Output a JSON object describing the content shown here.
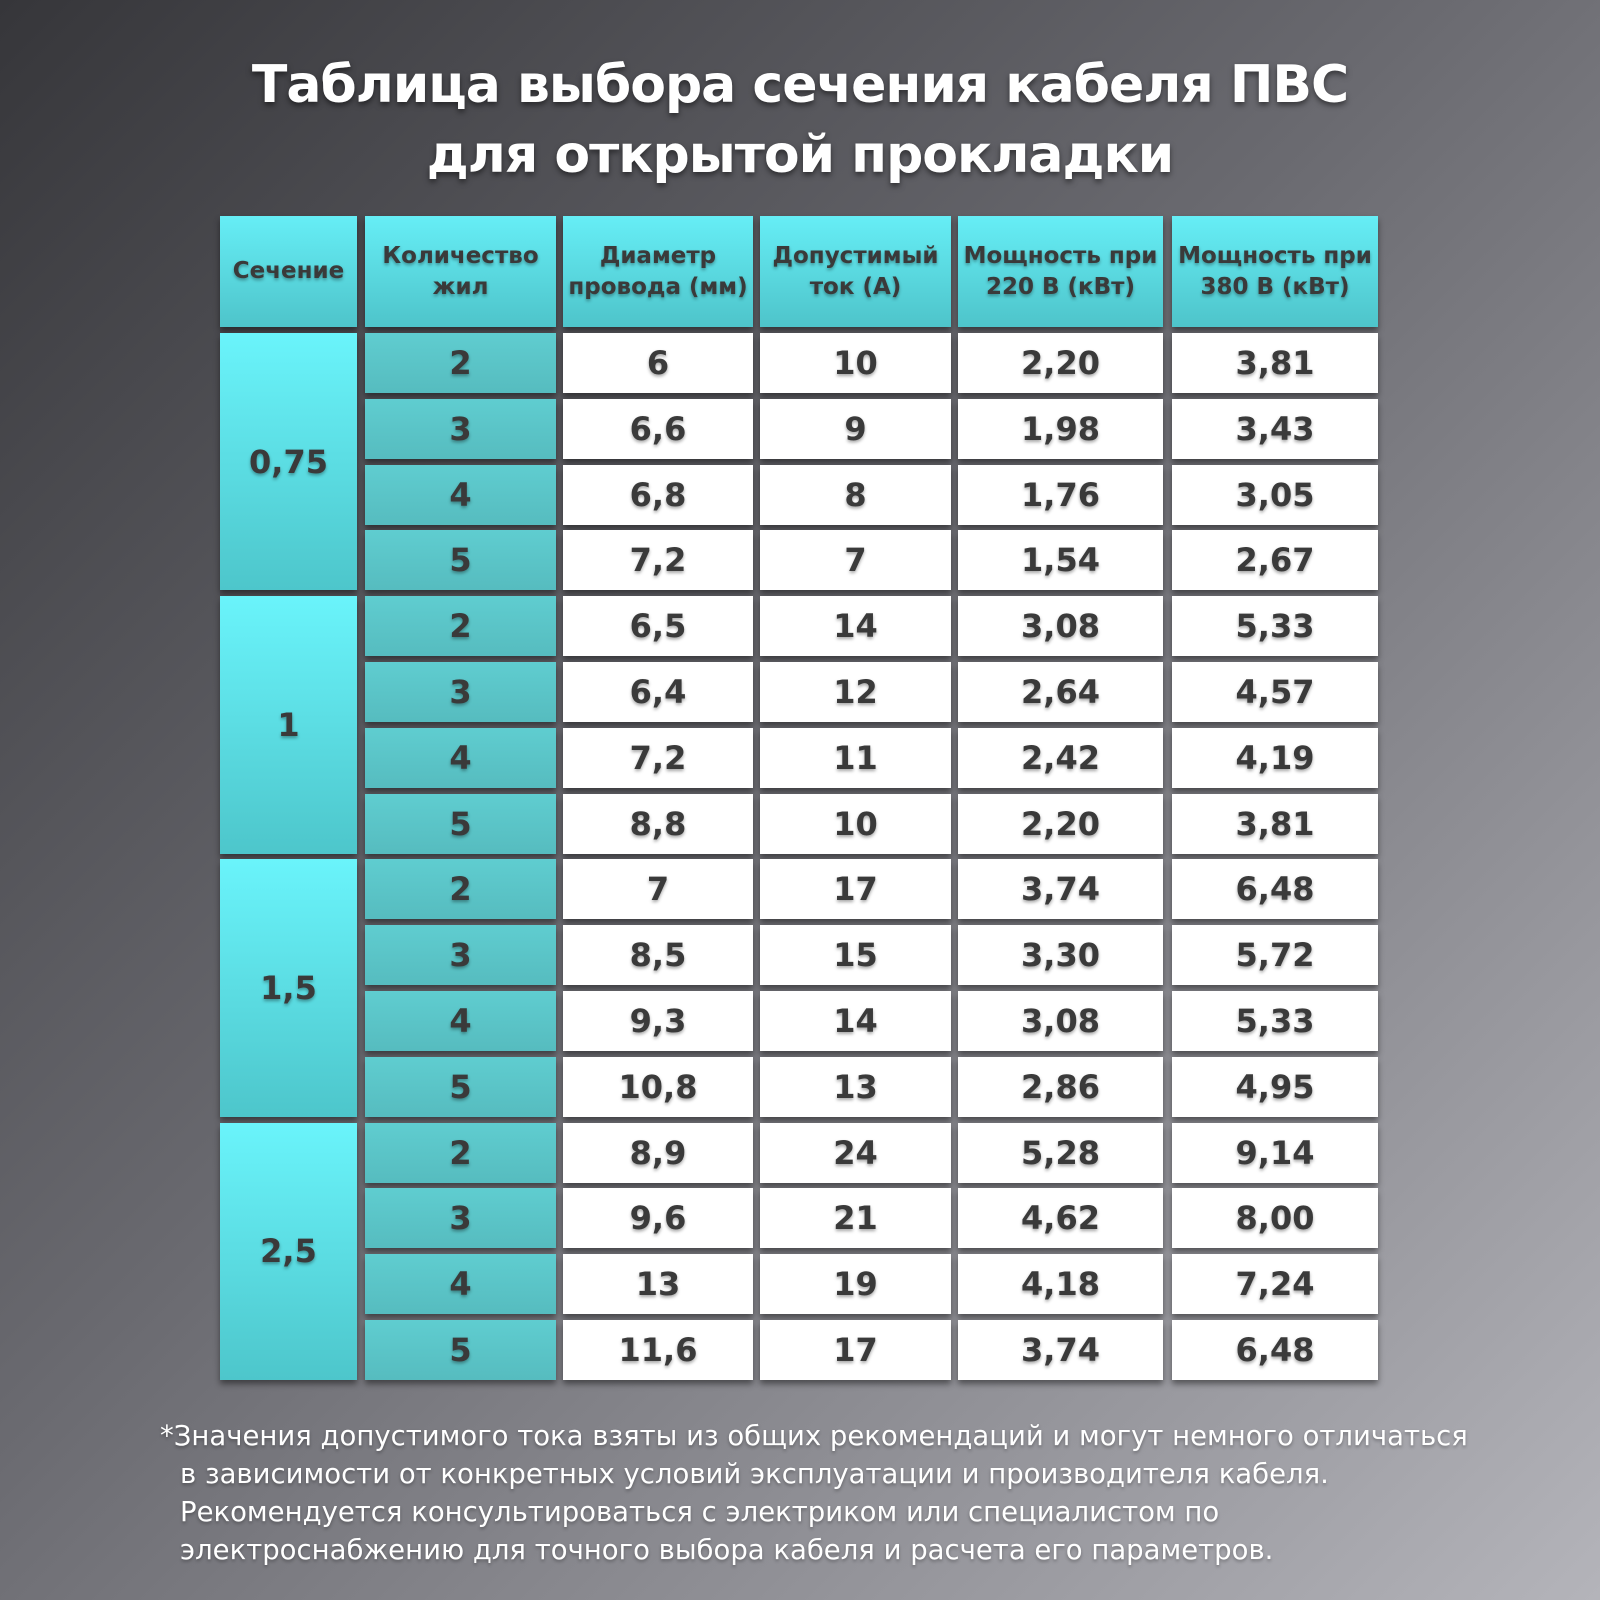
{
  "title_lines": [
    "Таблица выбора сечения кабеля ПВС",
    "для открытой прокладки"
  ],
  "table": {
    "header": [
      "Сечение",
      "Количество жил",
      "Диаметр провода (мм)",
      "Допустимый ток (А)",
      "Мощность при 220 В (кВт)",
      "Мощность при 380 В (кВт)"
    ],
    "groups": [
      {
        "section": "0,75",
        "rows": [
          [
            "2",
            "6",
            "10",
            "2,20",
            "3,81"
          ],
          [
            "3",
            "6,6",
            "9",
            "1,98",
            "3,43"
          ],
          [
            "4",
            "6,8",
            "8",
            "1,76",
            "3,05"
          ],
          [
            "5",
            "7,2",
            "7",
            "1,54",
            "2,67"
          ]
        ]
      },
      {
        "section": "1",
        "rows": [
          [
            "2",
            "6,5",
            "14",
            "3,08",
            "5,33"
          ],
          [
            "3",
            "6,4",
            "12",
            "2,64",
            "4,57"
          ],
          [
            "4",
            "7,2",
            "11",
            "2,42",
            "4,19"
          ],
          [
            "5",
            "8,8",
            "10",
            "2,20",
            "3,81"
          ]
        ]
      },
      {
        "section": "1,5",
        "rows": [
          [
            "2",
            "7",
            "17",
            "3,74",
            "6,48"
          ],
          [
            "3",
            "8,5",
            "15",
            "3,30",
            "5,72"
          ],
          [
            "4",
            "9,3",
            "14",
            "3,08",
            "5,33"
          ],
          [
            "5",
            "10,8",
            "13",
            "2,86",
            "4,95"
          ]
        ]
      },
      {
        "section": "2,5",
        "rows": [
          [
            "2",
            "8,9",
            "24",
            "5,28",
            "9,14"
          ],
          [
            "3",
            "9,6",
            "21",
            "4,62",
            "8,00"
          ],
          [
            "4",
            "13",
            "19",
            "4,18",
            "7,24"
          ],
          [
            "5",
            "11,6",
            "17",
            "3,74",
            "6,48"
          ]
        ]
      }
    ]
  },
  "footnote_lines": [
    "*Значения допустимого тока взяты из общих рекомендаций и могут немного отличаться",
    "в зависимости от конкретных условий эксплуатации и производителя кабеля.",
    "Рекомендуется консультироваться с электриком или специалистом по",
    "электроснабжению для точного выбора кабеля и расчета его параметров."
  ]
}
